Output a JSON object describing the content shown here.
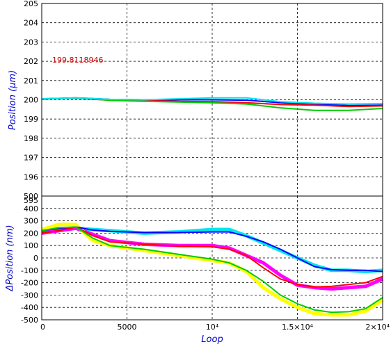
{
  "chart_data": [
    {
      "type": "line",
      "xlabel": "Loop",
      "ylabel": "Position (μm)",
      "xlim": [
        0,
        20000
      ],
      "ylim": [
        195,
        205
      ],
      "grid": true,
      "x_ticks": [
        "0",
        "5000",
        "10⁴",
        "1.5×10⁴",
        "2×10⁴"
      ],
      "y_ticks": [
        "196",
        "197",
        "198",
        "199",
        "200",
        "201",
        "202",
        "203",
        "204",
        "205"
      ],
      "annotation": "199.8118946",
      "colors": {
        "series1": "#0000ff",
        "series2": "#ff0000",
        "series3": "#00cc00",
        "series4": "#00e5ee"
      },
      "series": [
        {
          "color": "#0000ff",
          "x": [
            0,
            2000,
            4000,
            6000,
            8000,
            10000,
            12000,
            14000,
            16000,
            18000,
            20000
          ],
          "y": [
            200.05,
            200.1,
            200.02,
            200.0,
            200.0,
            200.0,
            199.98,
            199.85,
            199.78,
            199.7,
            199.72
          ]
        },
        {
          "color": "#ff0000",
          "x": [
            0,
            2000,
            4000,
            6000,
            8000,
            10000,
            12000,
            14000,
            16000,
            18000,
            20000
          ],
          "y": [
            200.05,
            200.08,
            199.98,
            199.95,
            199.92,
            199.9,
            199.85,
            199.75,
            199.72,
            199.65,
            199.68
          ]
        },
        {
          "color": "#00cc00",
          "x": [
            0,
            2000,
            4000,
            6000,
            8000,
            10000,
            12000,
            14000,
            16000,
            18000,
            20000
          ],
          "y": [
            200.02,
            200.1,
            199.97,
            199.92,
            199.88,
            199.84,
            199.78,
            199.58,
            199.45,
            199.45,
            199.55
          ]
        },
        {
          "color": "#00e5ee",
          "x": [
            0,
            2000,
            4000,
            6000,
            8000,
            10000,
            12000,
            14000,
            16000,
            18000,
            20000
          ],
          "y": [
            200.05,
            200.1,
            200.02,
            200.0,
            200.05,
            200.1,
            200.1,
            199.9,
            199.82,
            199.78,
            199.8
          ]
        }
      ]
    },
    {
      "type": "line",
      "xlabel": "Loop",
      "ylabel": "ΔPosition (nm)",
      "xlim": [
        0,
        20000
      ],
      "ylim": [
        -500,
        500
      ],
      "grid": true,
      "x_ticks": [
        "0",
        "5000",
        "10⁴",
        "1.5×10⁴",
        "2×10⁴"
      ],
      "y_ticks": [
        "-500",
        "-400",
        "-300",
        "-200",
        "-100",
        "0",
        "100",
        "200",
        "300",
        "400",
        "500",
        "595"
      ],
      "series": [
        {
          "color": "#0000ff",
          "x": [
            0,
            1000,
            2000,
            3000,
            4000,
            6000,
            8000,
            10000,
            11000,
            12000,
            13000,
            14000,
            15000,
            16000,
            17000,
            18000,
            19000,
            20000
          ],
          "y": [
            220,
            240,
            250,
            225,
            215,
            205,
            205,
            210,
            210,
            175,
            130,
            70,
            0,
            -70,
            -95,
            -100,
            -100,
            -110
          ]
        },
        {
          "color": "#ff0000",
          "x": [
            0,
            1000,
            2000,
            3000,
            4000,
            6000,
            8000,
            10000,
            11000,
            12000,
            13000,
            14000,
            15000,
            16000,
            17000,
            18000,
            19000,
            20000
          ],
          "y": [
            200,
            220,
            250,
            180,
            130,
            110,
            95,
            90,
            70,
            20,
            -80,
            -170,
            -215,
            -235,
            -230,
            -215,
            -200,
            -150
          ]
        },
        {
          "color": "#00cc00",
          "x": [
            0,
            1000,
            2000,
            3000,
            4000,
            6000,
            8000,
            10000,
            11000,
            12000,
            13000,
            14000,
            15000,
            16000,
            17000,
            18000,
            19000,
            20000
          ],
          "y": [
            220,
            245,
            250,
            160,
            100,
            70,
            30,
            -10,
            -40,
            -100,
            -190,
            -300,
            -370,
            -420,
            -440,
            -435,
            -410,
            -320
          ]
        },
        {
          "color": "#00e5ee",
          "x": [
            0,
            2000,
            4000,
            6000,
            8000,
            10000,
            11000,
            12000,
            13000,
            14000,
            15000,
            16000,
            17000,
            18000,
            19000,
            20000
          ],
          "y": [
            210,
            240,
            220,
            200,
            210,
            230,
            230,
            180,
            120,
            60,
            0,
            -60,
            -100,
            -100,
            -110,
            -100
          ]
        },
        {
          "color": "#ff00ff",
          "x": [
            0,
            2000,
            4000,
            6000,
            8000,
            10000,
            11000,
            12000,
            13000,
            14000,
            15000,
            16000,
            17000,
            18000,
            19000,
            20000
          ],
          "y": [
            200,
            240,
            140,
            110,
            100,
            100,
            80,
            20,
            -40,
            -140,
            -220,
            -240,
            -250,
            -240,
            -230,
            -170
          ]
        },
        {
          "color": "#ffff00",
          "x": [
            0,
            1000,
            2000,
            3000,
            4000,
            6000,
            8000,
            10000,
            11000,
            12000,
            13000,
            14000,
            15000,
            16000,
            17000,
            18000,
            19000,
            20000
          ],
          "y": [
            230,
            270,
            270,
            140,
            100,
            60,
            20,
            -20,
            -40,
            -110,
            -240,
            -330,
            -400,
            -450,
            -460,
            -460,
            -430,
            -340
          ]
        }
      ]
    }
  ]
}
